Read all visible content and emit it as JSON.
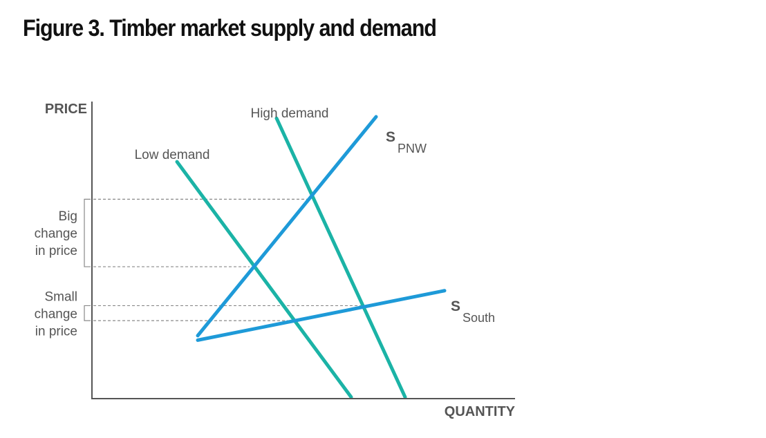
{
  "figure": {
    "title": "Figure 3. Timber market supply and demand"
  },
  "colors": {
    "demand_line": "#1bb3a6",
    "supply_line": "#1e9ad8",
    "axis": "#555555",
    "text": "#555555",
    "guide": "#888888"
  },
  "chart_data": {
    "type": "line",
    "title": "Figure 3. Timber market supply and demand",
    "xlabel": "QUANTITY",
    "ylabel": "PRICE",
    "xlim": [
      0,
      100
    ],
    "ylim": [
      0,
      100
    ],
    "grid": false,
    "ticks": "none",
    "series": [
      {
        "id": "low_demand",
        "label": "Low demand",
        "kind": "demand",
        "points": [
          [
            20.5,
            79
          ],
          [
            62.5,
            0.5
          ]
        ]
      },
      {
        "id": "high_demand",
        "label": "High demand",
        "kind": "demand",
        "points": [
          [
            44.5,
            93.5
          ],
          [
            75.5,
            0.5
          ]
        ]
      },
      {
        "id": "supply_pnw",
        "label_main": "S",
        "label_sub": "PNW",
        "kind": "supply",
        "points": [
          [
            25.5,
            21
          ],
          [
            68.5,
            94
          ]
        ]
      },
      {
        "id": "supply_south",
        "label_main": "S",
        "label_sub": "South",
        "kind": "supply",
        "points": [
          [
            25.5,
            19.5
          ],
          [
            85,
            36
          ]
        ]
      }
    ],
    "equilibria": [
      {
        "id": "pnw_high",
        "x": 52,
        "y": 66.5
      },
      {
        "id": "pnw_low",
        "x": 38,
        "y": 44
      },
      {
        "id": "south_high",
        "x": 66,
        "y": 31
      },
      {
        "id": "south_low",
        "x": 49,
        "y": 26
      }
    ],
    "annotations": [
      {
        "id": "big_change",
        "lines": [
          "Big",
          "change",
          "in price"
        ],
        "y_range": [
          44,
          66.5
        ]
      },
      {
        "id": "small_change",
        "lines": [
          "Small",
          "change",
          "in price"
        ],
        "y_range": [
          26,
          31
        ]
      }
    ]
  }
}
